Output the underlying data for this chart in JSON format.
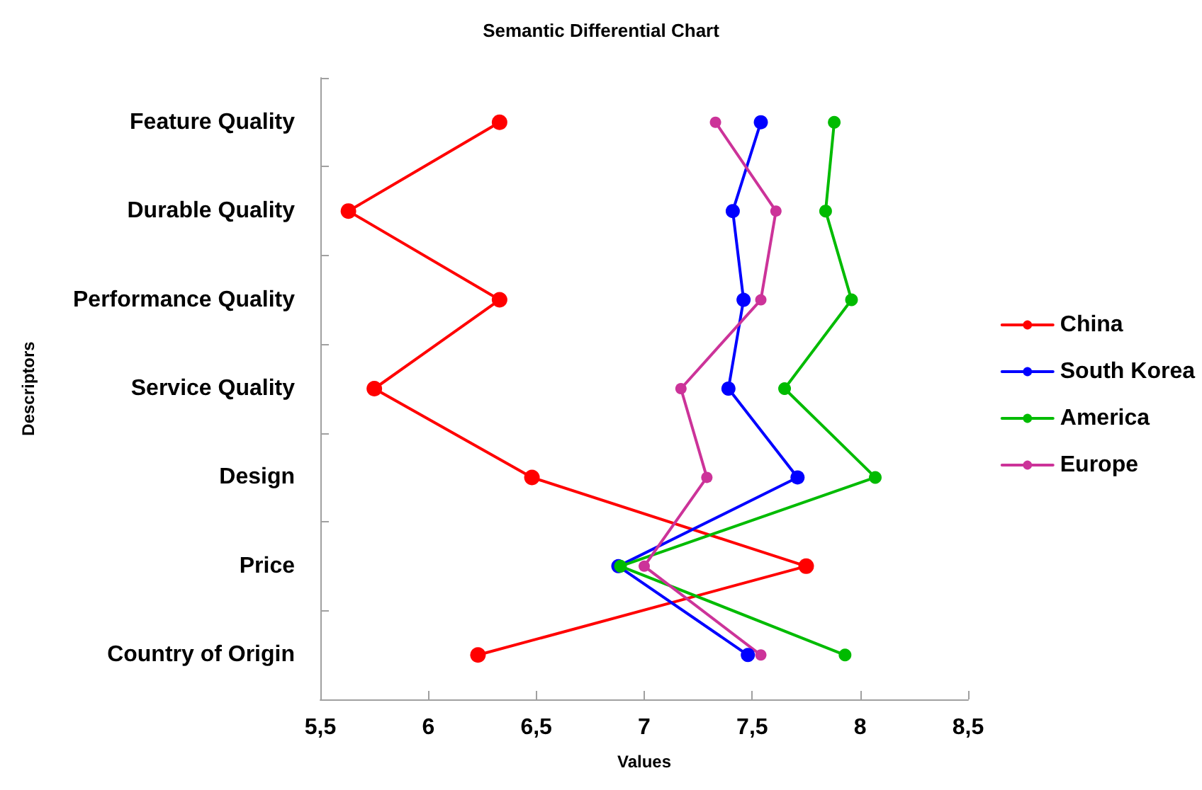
{
  "chart_data": {
    "type": "line",
    "orientation": "horizontal",
    "title": "Semantic Differential Chart",
    "xlabel": "Values",
    "ylabel": "Descriptors",
    "categories": [
      "Feature Quality",
      "Durable Quality",
      "Performance Quality",
      "Service Quality",
      "Design",
      "Price",
      "Country of Origin"
    ],
    "series": [
      {
        "name": "China",
        "color": "#ff0000",
        "values": [
          6.33,
          5.63,
          6.33,
          5.75,
          6.48,
          7.75,
          6.23
        ]
      },
      {
        "name": "South Korea",
        "color": "#0000ff",
        "values": [
          7.54,
          7.41,
          7.46,
          7.39,
          7.71,
          6.88,
          7.48
        ]
      },
      {
        "name": "America",
        "color": "#00bb00",
        "values": [
          7.88,
          7.84,
          7.96,
          7.65,
          8.07,
          6.89,
          7.93
        ]
      },
      {
        "name": "Europe",
        "color": "#cc3399",
        "values": [
          7.33,
          7.61,
          7.54,
          7.17,
          7.29,
          7.0,
          7.54
        ]
      }
    ],
    "xlim": [
      5.5,
      8.5
    ],
    "xticks": [
      {
        "value": 5.5,
        "label": "5,5"
      },
      6,
      {
        "value": 6.5,
        "label": "6,5"
      },
      7,
      {
        "value": 7.5,
        "label": "7,5"
      },
      8,
      {
        "value": 8.5,
        "label": "8,5"
      }
    ],
    "legend": "right",
    "marker": "circle",
    "line_style": "solid",
    "grid": false
  }
}
